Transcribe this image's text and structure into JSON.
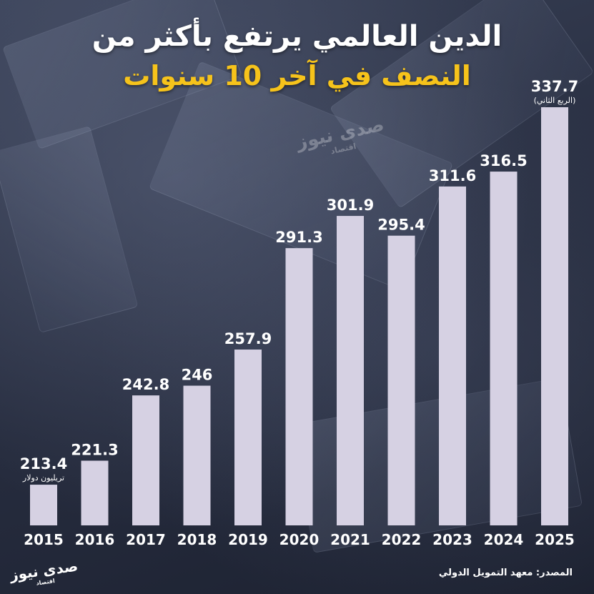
{
  "header": {
    "title": "الدين العالمي يرتفع بأكثر من",
    "subtitle": "النصف في آخر 10 سنوات"
  },
  "watermark": {
    "brand": "صدى نيوز",
    "section": "اقتصاد"
  },
  "source": "المصدر: معهد التمويل الدولي",
  "colors": {
    "bar": "#d6d1e3",
    "accent": "#f6c31b",
    "text": "#ffffff"
  },
  "chart_data": {
    "type": "bar",
    "title": "الدين العالمي يرتفع بأكثر من النصف في آخر 10 سنوات",
    "categories": [
      "2015",
      "2016",
      "2017",
      "2018",
      "2019",
      "2020",
      "2021",
      "2022",
      "2023",
      "2024",
      "2025"
    ],
    "values": [
      213.4,
      221.3,
      242.8,
      246,
      257.9,
      291.3,
      301.9,
      295.4,
      311.6,
      316.5,
      337.7
    ],
    "value_labels": [
      "213.4",
      "221.3",
      "242.8",
      "246",
      "257.9",
      "291.3",
      "301.9",
      "295.4",
      "311.6",
      "316.5",
      "337.7"
    ],
    "unit_note": "تريليون دولار",
    "last_note": "(الربع الثاني)",
    "grid": false,
    "legend": "none"
  }
}
